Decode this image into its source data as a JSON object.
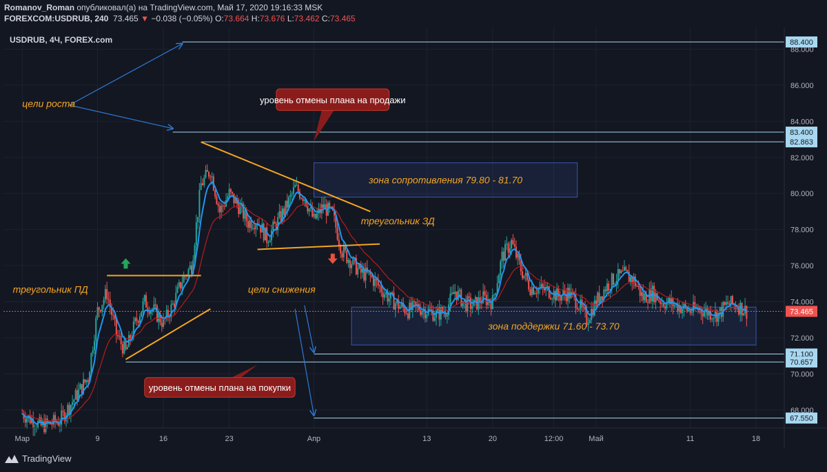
{
  "header": {
    "author": "Romanov_Roman",
    "published_text": "опубликовал(а) на TradingView.com, Май 17, 2020 19:16:33 MSK",
    "symbol_line": "FOREXCOM:USDRUB, 240",
    "last": "73.465",
    "arrow": "▼",
    "change": "−0.038 (−0.05%)",
    "o_label": "O:",
    "o_val": "73.664",
    "h_label": "H:",
    "h_val": "73.676",
    "l_label": "L:",
    "l_val": "73.462",
    "c_label": "C:",
    "c_val": "73.465"
  },
  "legend": "USDRUB, 4Ч, FOREX.com",
  "brand": "TradingView",
  "colors": {
    "background": "#131722",
    "grid": "#1e2230",
    "up": "#26a69a",
    "down": "#ef5350",
    "ma_fast": "#2196f3",
    "ma_slow": "#b71c1c",
    "trend": "#f5a623",
    "level": "#a8d8f0",
    "arrow": "#2f7ad6",
    "zone": "#3a56b0",
    "annotation_text": "#f5a623",
    "callout_bg": "#8b1c1c"
  },
  "icons": [
    "tradingview-logo-icon",
    "arrow-up-icon",
    "arrow-down-icon"
  ],
  "chart_data": {
    "type": "candlestick",
    "symbol": "USDRUB",
    "timeframe": "4Ч",
    "y_range": [
      67,
      89.2
    ],
    "y_ticks": [
      "68.000",
      "70.000",
      "72.000",
      "74.000",
      "76.000",
      "78.000",
      "80.000",
      "82.000",
      "84.000",
      "86.000",
      "88.000"
    ],
    "x_ticks": [
      {
        "label": "Мар",
        "date": "2020-03-01"
      },
      {
        "label": "9",
        "date": "2020-03-09"
      },
      {
        "label": "16",
        "date": "2020-03-16"
      },
      {
        "label": "23",
        "date": "2020-03-23"
      },
      {
        "label": "Апр",
        "date": "2020-04-01"
      },
      {
        "label": "13",
        "date": "2020-04-13"
      },
      {
        "label": "20",
        "date": "2020-04-20"
      },
      {
        "label": "12:00",
        "date": "2020-04-26 12:00"
      },
      {
        "label": "Май",
        "date": "2020-05-01"
      },
      {
        "label": "11",
        "date": "2020-05-11"
      },
      {
        "label": "18",
        "date": "2020-05-18"
      }
    ],
    "price_path": [
      [
        "2020-03-01",
        67.8
      ],
      [
        "2020-03-03",
        67.1
      ],
      [
        "2020-03-05",
        67.4
      ],
      [
        "2020-03-06",
        68.2
      ],
      [
        "2020-03-08",
        69.8
      ],
      [
        "2020-03-09",
        73.5
      ],
      [
        "2020-03-10",
        74.5
      ],
      [
        "2020-03-11",
        72.2
      ],
      [
        "2020-03-12",
        71.2
      ],
      [
        "2020-03-13",
        72.8
      ],
      [
        "2020-03-14",
        74.0
      ],
      [
        "2020-03-15",
        73.5
      ],
      [
        "2020-03-16",
        72.8
      ],
      [
        "2020-03-17",
        73.8
      ],
      [
        "2020-03-18",
        75.2
      ],
      [
        "2020-03-19",
        76.0
      ],
      [
        "2020-03-20",
        80.5
      ],
      [
        "2020-03-21",
        81.3
      ],
      [
        "2020-03-22",
        79.0
      ],
      [
        "2020-03-23",
        80.0
      ],
      [
        "2020-03-24",
        79.3
      ],
      [
        "2020-03-25",
        78.4
      ],
      [
        "2020-03-26",
        78.5
      ],
      [
        "2020-03-27",
        77.5
      ],
      [
        "2020-03-28",
        78.3
      ],
      [
        "2020-03-29",
        79.2
      ],
      [
        "2020-03-30",
        80.3
      ],
      [
        "2020-03-31",
        79.8
      ],
      [
        "2020-04-01",
        78.5
      ],
      [
        "2020-04-02",
        79.3
      ],
      [
        "2020-04-03",
        78.8
      ],
      [
        "2020-04-04",
        76.8
      ],
      [
        "2020-04-05",
        76.2
      ],
      [
        "2020-04-06",
        75.6
      ],
      [
        "2020-04-07",
        75.4
      ],
      [
        "2020-04-08",
        74.8
      ],
      [
        "2020-04-09",
        74.2
      ],
      [
        "2020-04-10",
        73.8
      ],
      [
        "2020-04-11",
        73.5
      ],
      [
        "2020-04-12",
        73.7
      ],
      [
        "2020-04-13",
        73.5
      ],
      [
        "2020-04-14",
        73.3
      ],
      [
        "2020-04-15",
        73.5
      ],
      [
        "2020-04-16",
        74.6
      ],
      [
        "2020-04-17",
        73.9
      ],
      [
        "2020-04-18",
        73.8
      ],
      [
        "2020-04-19",
        74.2
      ],
      [
        "2020-04-20",
        74.0
      ],
      [
        "2020-04-21",
        76.5
      ],
      [
        "2020-04-22",
        77.3
      ],
      [
        "2020-04-23",
        75.8
      ],
      [
        "2020-04-24",
        74.8
      ],
      [
        "2020-04-25",
        74.7
      ],
      [
        "2020-04-26",
        74.6
      ],
      [
        "2020-04-27",
        74.3
      ],
      [
        "2020-04-28",
        74.5
      ],
      [
        "2020-04-29",
        74.0
      ],
      [
        "2020-04-30",
        73.0
      ],
      [
        "2020-05-01",
        74.0
      ],
      [
        "2020-05-02",
        74.8
      ],
      [
        "2020-05-03",
        75.3
      ],
      [
        "2020-05-04",
        75.5
      ],
      [
        "2020-05-05",
        75.2
      ],
      [
        "2020-05-06",
        74.2
      ],
      [
        "2020-05-07",
        74.5
      ],
      [
        "2020-05-08",
        74.0
      ],
      [
        "2020-05-09",
        73.9
      ],
      [
        "2020-05-10",
        73.7
      ],
      [
        "2020-05-11",
        73.5
      ],
      [
        "2020-05-12",
        73.6
      ],
      [
        "2020-05-13",
        73.4
      ],
      [
        "2020-05-14",
        73.3
      ],
      [
        "2020-05-15",
        73.9
      ],
      [
        "2020-05-16",
        73.8
      ],
      [
        "2020-05-17",
        73.465
      ]
    ],
    "price_labels": [
      {
        "text": "88.400",
        "value": 88.4
      },
      {
        "text": "83.400",
        "value": 83.4
      },
      {
        "text": "82.863",
        "value": 82.863
      },
      {
        "text": "73.465",
        "value": 73.465
      },
      {
        "text": "71.100",
        "value": 71.1
      },
      {
        "text": "70.657",
        "value": 70.657
      },
      {
        "text": "67.550",
        "value": 67.55
      }
    ],
    "levels": [
      {
        "value": 88.4,
        "from": "2020-03-18"
      },
      {
        "value": 83.4,
        "from": "2020-03-17"
      },
      {
        "value": 82.863,
        "from": "2020-03-20"
      },
      {
        "value": 71.1,
        "from": "2020-04-01"
      },
      {
        "value": 70.657,
        "from": "2020-03-12"
      },
      {
        "value": 67.55,
        "from": "2020-04-01"
      }
    ],
    "current_price": 73.465,
    "zones": [
      {
        "from": "2020-04-01",
        "to": "2020-04-29",
        "y0": 79.8,
        "y1": 81.7,
        "text": "зона сопротивления 79.80 - 81.70"
      },
      {
        "from": "2020-04-05",
        "to": "2020-05-18",
        "y0": 71.6,
        "y1": 73.7,
        "text": "зона поддержки 71.60 - 73.70"
      }
    ],
    "trendlines": [
      {
        "x1": "2020-03-10",
        "y1": 75.45,
        "x2": "2020-03-20",
        "y2": 75.45
      },
      {
        "x1": "2020-03-12",
        "y1": 70.8,
        "x2": "2020-03-21",
        "y2": 73.6
      },
      {
        "x1": "2020-03-20",
        "y1": 82.85,
        "x2": "2020-04-07",
        "y2": 79.0
      },
      {
        "x1": "2020-03-26",
        "y1": 76.9,
        "x2": "2020-04-08",
        "y2": 77.2
      }
    ],
    "annotations": [
      {
        "text": "цели роста",
        "x": "2020-03-01",
        "y": 84.8
      },
      {
        "text": "треугольник ПД",
        "x": "2020-02-29",
        "y": 74.5
      },
      {
        "text": "цели снижения",
        "x": "2020-03-25",
        "y": 74.5
      },
      {
        "text": "треугольник ЗД",
        "x": "2020-04-06",
        "y": 78.3
      }
    ],
    "callouts": [
      {
        "text": "уровень отмены плана на продажи",
        "x1": "2020-03-28",
        "y1": 84.6,
        "x2": "2020-04-09",
        "y2": 85.8,
        "tip_x": "2020-04-01",
        "tip_y": 82.9
      },
      {
        "text": "уровень отмены плана на покупки",
        "x1": "2020-03-14",
        "y1": 68.7,
        "x2": "2020-03-30",
        "y2": 69.8,
        "tip_x": "2020-03-26",
        "tip_y": 70.5
      }
    ],
    "arrows": [
      {
        "x1": "2020-03-06",
        "y1": 84.9,
        "x2": "2020-03-18",
        "y2": 88.3
      },
      {
        "x1": "2020-03-06",
        "y1": 84.9,
        "x2": "2020-03-17",
        "y2": 83.6
      },
      {
        "x1": "2020-03-31",
        "y1": 73.8,
        "x2": "2020-04-01",
        "y2": 71.2
      },
      {
        "x1": "2020-03-30",
        "y1": 73.6,
        "x2": "2020-04-01",
        "y2": 67.7
      }
    ],
    "signals": [
      {
        "type": "up",
        "x": "2020-03-12",
        "y": 76.1
      },
      {
        "type": "down",
        "x": "2020-04-03",
        "y": 76.4
      }
    ],
    "grid": true,
    "indicators": [
      "fast moving average (blue)",
      "slow moving average (dark red)"
    ]
  }
}
